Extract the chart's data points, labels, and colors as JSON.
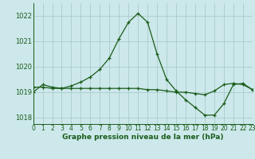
{
  "title": "Graphe pression niveau de la mer (hPa)",
  "bg_color": "#cce8ea",
  "line_color": "#1a5c1a",
  "grid_color": "#aacccc",
  "x_values": [
    0,
    1,
    2,
    3,
    4,
    5,
    6,
    7,
    8,
    9,
    10,
    11,
    12,
    13,
    14,
    15,
    16,
    17,
    18,
    19,
    20,
    21,
    22,
    23
  ],
  "y_values": [
    1019.0,
    1019.3,
    1019.2,
    1019.15,
    1019.25,
    1019.4,
    1019.6,
    1019.9,
    1020.35,
    1021.1,
    1021.75,
    1022.1,
    1021.75,
    1020.5,
    1019.5,
    1019.05,
    1018.7,
    1018.4,
    1018.1,
    1018.1,
    1018.55,
    1019.3,
    1019.35,
    1019.1
  ],
  "y2_values": [
    1019.2,
    1019.2,
    1019.15,
    1019.15,
    1019.15,
    1019.15,
    1019.15,
    1019.15,
    1019.15,
    1019.15,
    1019.15,
    1019.15,
    1019.1,
    1019.1,
    1019.05,
    1019.0,
    1019.0,
    1018.95,
    1018.9,
    1019.05,
    1019.3,
    1019.35,
    1019.3,
    1019.1
  ],
  "ylim": [
    1017.75,
    1022.5
  ],
  "xlim": [
    0,
    23
  ],
  "yticks": [
    1018,
    1019,
    1020,
    1021,
    1022
  ],
  "xticks": [
    0,
    1,
    2,
    3,
    4,
    5,
    6,
    7,
    8,
    9,
    10,
    11,
    12,
    13,
    14,
    15,
    16,
    17,
    18,
    19,
    20,
    21,
    22,
    23
  ],
  "xlabel_fontsize": 6.5,
  "tick_fontsize": 5.5,
  "ytick_fontsize": 6.0
}
